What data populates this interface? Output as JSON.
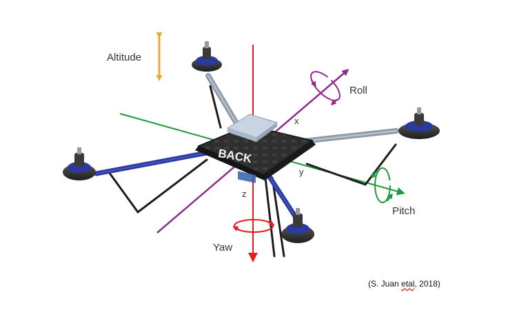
{
  "labels": {
    "altitude": "Altitude",
    "roll": "Roll",
    "pitch": "Pitch",
    "yaw": "Yaw",
    "x": "x",
    "y": "y",
    "z": "z",
    "back": "BACK"
  },
  "citation": {
    "prefix": "(S. Juan ",
    "etal": "etal",
    "suffix": ", 2018)"
  },
  "colors": {
    "altitude": "#e8a838",
    "roll": "#8e2b8a",
    "pitch": "#1f9a3a",
    "yaw": "#e01e1e",
    "arm_blue": "#2b3aa0",
    "arm_gray": "#8f9aa6",
    "frame": "#2a2a2a"
  }
}
